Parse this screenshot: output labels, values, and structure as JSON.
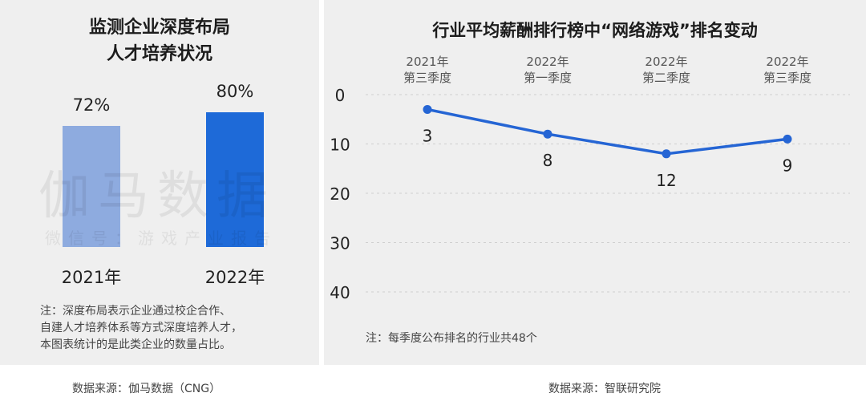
{
  "colors": {
    "bar_2021": "#8eabdf",
    "bar_2022": "#1e6ad8",
    "line": "#2565d4",
    "panel_bg": "#efefef"
  },
  "left": {
    "title_line1": "监测企业深度布局",
    "title_line2": "人才培养状况",
    "watermark_main": "伽马数据",
    "watermark_sub": "微信号：游戏产业报告",
    "note_line1": "注：深度布局表示企业通过校企合作、",
    "note_line2": "自建人才培养体系等方式深度培养人才，",
    "note_line3": "本图表统计的是此类企业的数量占比。",
    "source": "数据来源：伽马数据（CNG）"
  },
  "right": {
    "title": "行业平均薪酬排行榜中“网络游戏”排名变动",
    "note": "注：每季度公布排名的行业共48个",
    "source": "数据来源：智联研究院"
  },
  "chart_data": [
    {
      "type": "bar",
      "title": "监测企业深度布局人才培养状况",
      "categories": [
        "2021年",
        "2022年"
      ],
      "values": [
        72,
        80
      ],
      "value_labels": [
        "72%",
        "80%"
      ],
      "unit": "%",
      "ylim": [
        0,
        100
      ]
    },
    {
      "type": "line",
      "title": "行业平均薪酬排行榜中“网络游戏”排名变动",
      "categories": [
        [
          "2021年",
          "第三季度"
        ],
        [
          "2022年",
          "第一季度"
        ],
        [
          "2022年",
          "第二季度"
        ],
        [
          "2022年",
          "第三季度"
        ]
      ],
      "values": [
        3,
        8,
        12,
        9
      ],
      "y_ticks": [
        0,
        10,
        20,
        30,
        40
      ],
      "ylim": [
        0,
        40
      ],
      "y_inverted": true,
      "x_axis_position": "top",
      "grid": "dashed horizontal"
    }
  ]
}
